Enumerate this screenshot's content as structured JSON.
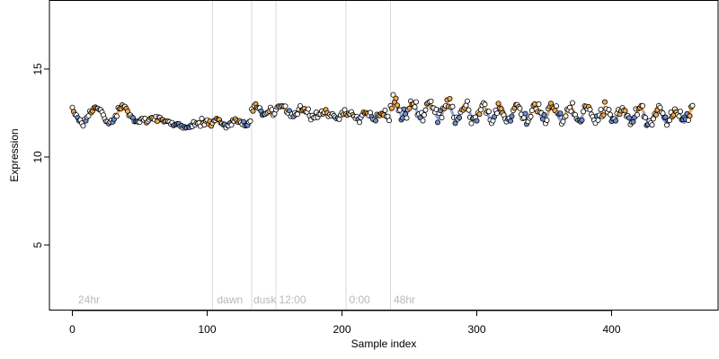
{
  "chart_data": {
    "type": "scatter",
    "title": "",
    "xlabel": "Sample index",
    "ylabel": "Expression",
    "xlim": [
      -17,
      479
    ],
    "ylim": [
      1.3,
      18.9
    ],
    "x_ticks": [
      0,
      100,
      200,
      300,
      400
    ],
    "y_ticks": [
      5,
      10,
      15
    ],
    "grid": false,
    "legend": "none",
    "region_lines": [
      104,
      133,
      151,
      203,
      236
    ],
    "region_labels": [
      {
        "x": 3,
        "text": "24hr"
      },
      {
        "x": 106,
        "text": "dawn"
      },
      {
        "x": 133,
        "text": "dusk"
      },
      {
        "x": 152,
        "text": "12:00"
      },
      {
        "x": 204,
        "text": "0:00"
      },
      {
        "x": 237,
        "text": "48hr"
      }
    ],
    "segments": [
      {
        "x_start": 0,
        "x_end": 51,
        "base": 12.4,
        "amp": 0.45,
        "period": 20,
        "phase": 2.3,
        "noise": 0.12,
        "trend": 0
      },
      {
        "x_start": 52,
        "x_end": 103,
        "base": 11.95,
        "amp": 0.18,
        "period": 40,
        "phase": 0,
        "noise": 0.14,
        "trend": -0.3
      },
      {
        "x_start": 104,
        "x_end": 132,
        "base": 11.95,
        "amp": 0.12,
        "period": 14,
        "phase": 0,
        "noise": 0.12,
        "trend": 0
      },
      {
        "x_start": 133,
        "x_end": 150,
        "base": 12.6,
        "amp": 0.2,
        "period": 12,
        "phase": 0,
        "noise": 0.15,
        "trend": -0.4
      },
      {
        "x_start": 151,
        "x_end": 202,
        "base": 12.5,
        "amp": 0.2,
        "period": 16,
        "phase": 0,
        "noise": 0.17,
        "trend": -0.3
      },
      {
        "x_start": 203,
        "x_end": 235,
        "base": 12.35,
        "amp": 0.15,
        "period": 12,
        "phase": 0,
        "noise": 0.17,
        "trend": 0
      },
      {
        "x_start": 236,
        "x_end": 460,
        "base": 12.5,
        "amp": 0.4,
        "period": 13,
        "phase": 0,
        "noise": 0.28,
        "trend": -0.3
      }
    ],
    "colors": {
      "point_fill_high": "#f5a94a",
      "point_fill_low": "#6f8fd0",
      "point_fill_mid": "#ffffff",
      "point_stroke": "#000000",
      "fit_line_high": "#f5a94a",
      "fit_line_low": "#8aa4d8",
      "region_line": "#d9d9d9",
      "region_text": "#b8b8b8"
    }
  }
}
